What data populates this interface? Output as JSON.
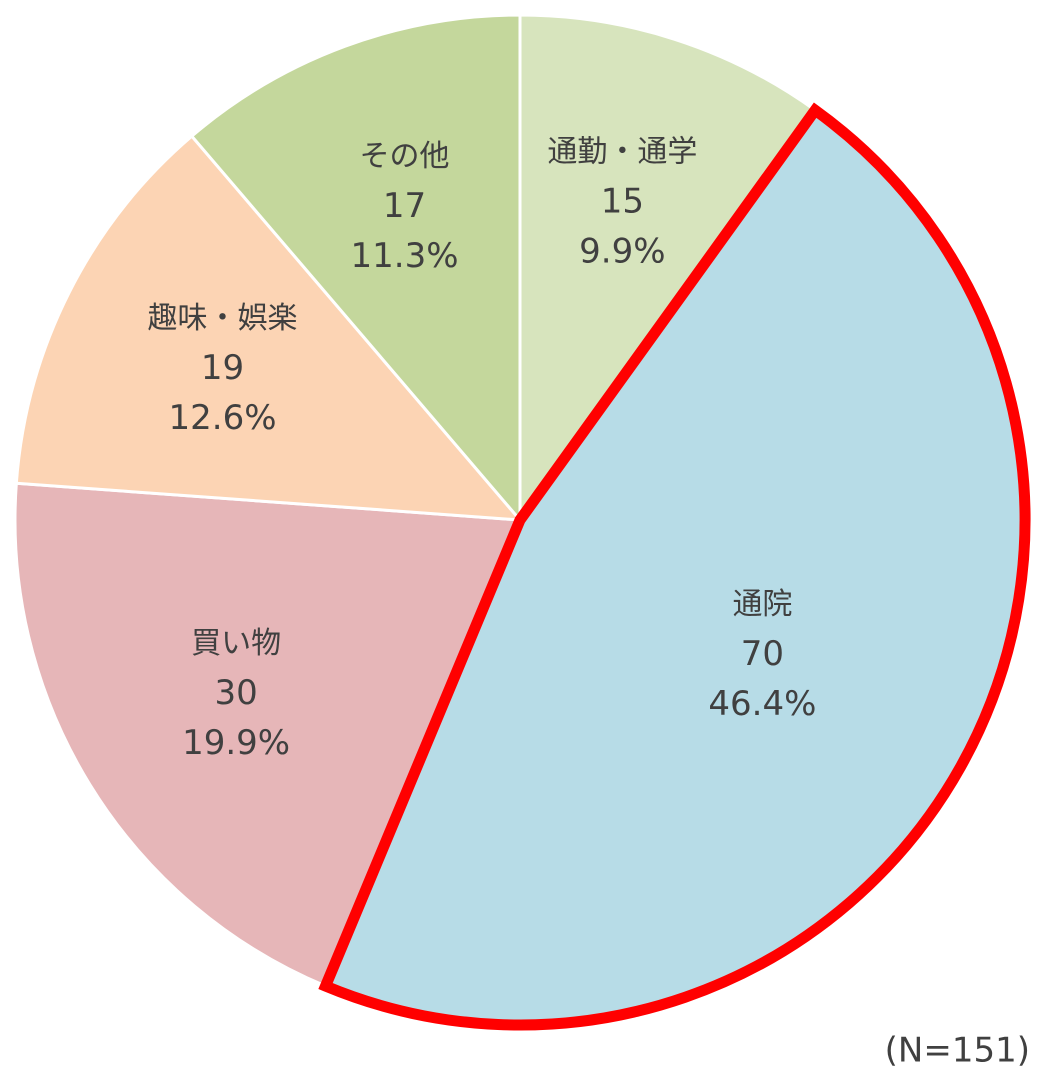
{
  "chart_data": {
    "type": "pie",
    "categories": [
      "通勤・通学",
      "通院",
      "買い物",
      "趣味・娯楽",
      "その他"
    ],
    "values": [
      15,
      70,
      30,
      19,
      17
    ],
    "percent_labels": [
      "9.9%",
      "46.4%",
      "19.9%",
      "12.6%",
      "11.3%"
    ],
    "colors": [
      "#d7e4bd",
      "#b7dce7",
      "#e6b6b8",
      "#fcd4b4",
      "#c4d79c"
    ],
    "highlight_index": 1,
    "highlight_color": "#ff0000",
    "annotation": "(N=151)"
  }
}
